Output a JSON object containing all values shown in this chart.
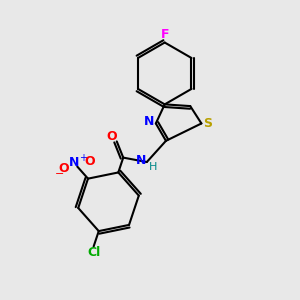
{
  "bg_color": "#e8e8e8",
  "atom_colors": {
    "C": "#000000",
    "N": "#0000ff",
    "O": "#ff0000",
    "S": "#b8a000",
    "F": "#ff00ff",
    "Cl": "#00aa00",
    "H": "#008888"
  },
  "lw": 1.5,
  "fontsize": 9
}
